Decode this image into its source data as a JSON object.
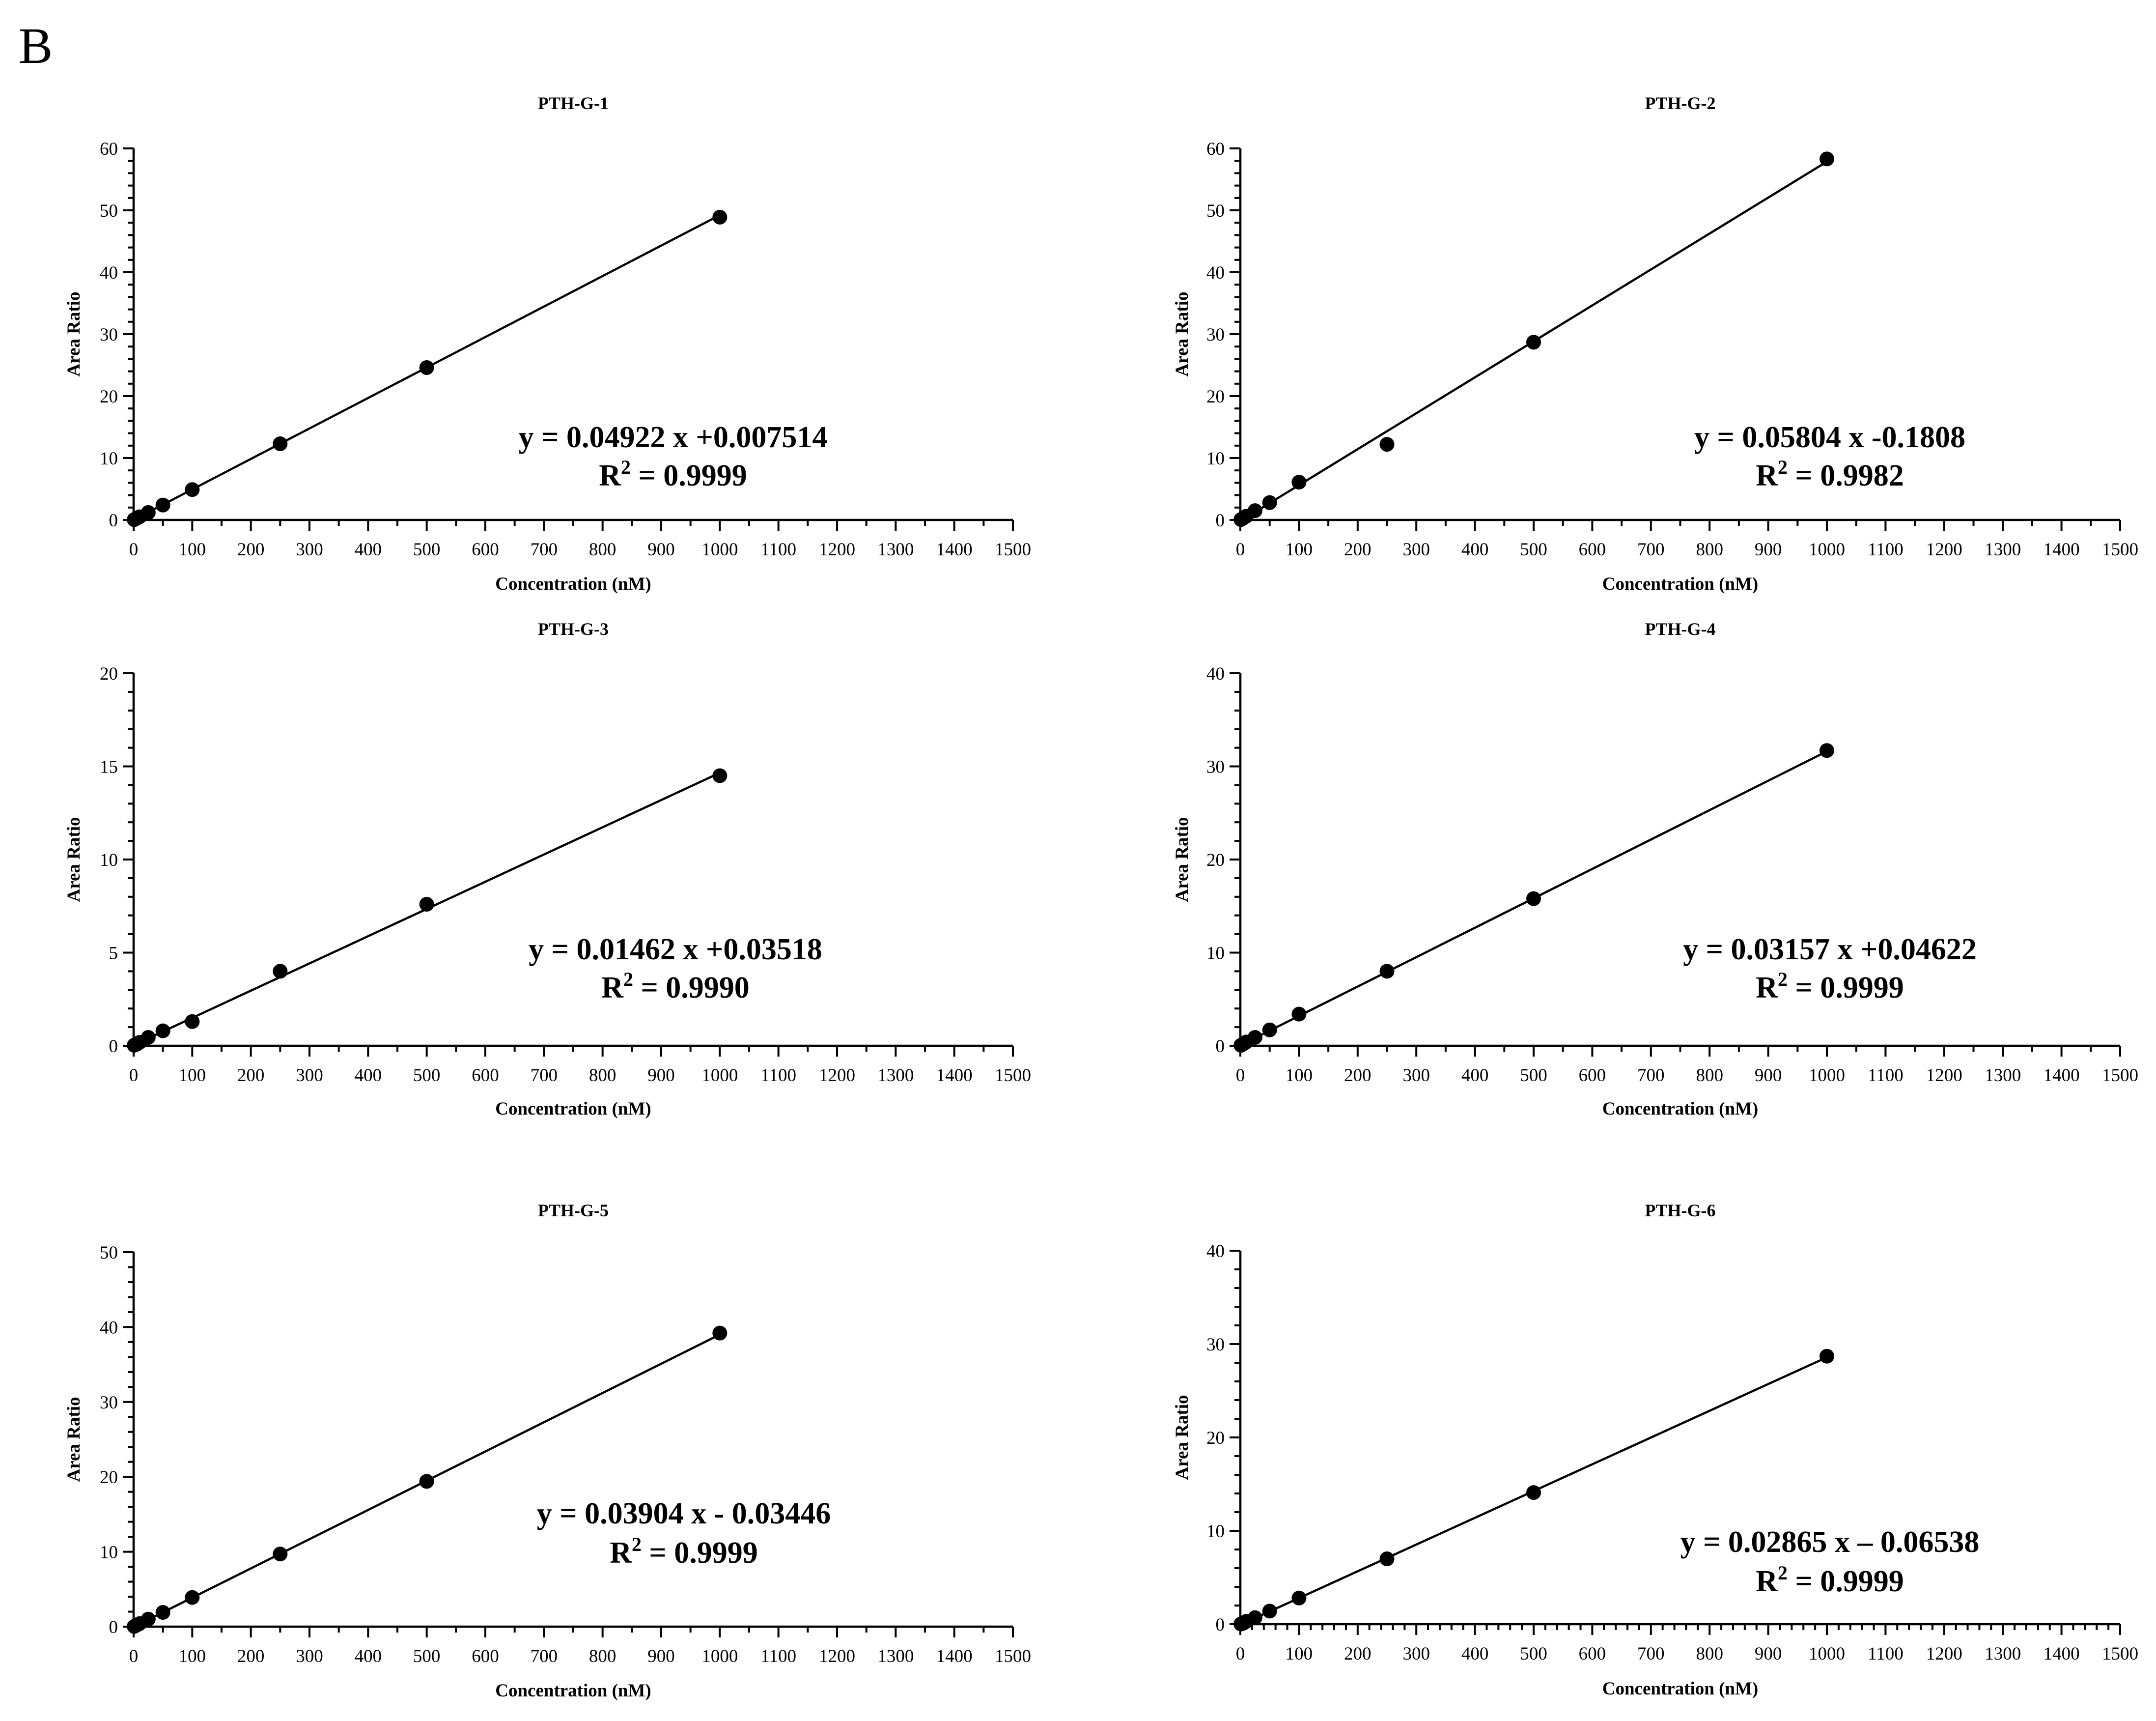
{
  "panel_label": "B",
  "colors": {
    "ink": "#000000",
    "background": "#ffffff"
  },
  "chart_data": [
    {
      "type": "scatter",
      "title": "PTH-G-1",
      "xlabel": "Concentration (nM)",
      "ylabel": "Area Ratio",
      "xlim": [
        0,
        1500
      ],
      "ylim": [
        0,
        60
      ],
      "x_ticks": [
        0,
        100,
        200,
        300,
        400,
        500,
        600,
        700,
        800,
        900,
        1000,
        1100,
        1200,
        1300,
        1400,
        1500
      ],
      "y_ticks": [
        0,
        10,
        20,
        30,
        40,
        50,
        60
      ],
      "y_minor_step": 2,
      "x_minor_step": 50,
      "x": [
        1,
        5,
        10,
        25,
        50,
        100,
        250,
        500,
        1000
      ],
      "y": [
        0.05,
        0.25,
        0.5,
        1.2,
        2.4,
        4.9,
        12.3,
        24.6,
        48.9
      ],
      "fit": {
        "slope": 0.04922,
        "intercept": 0.007514,
        "x_range": [
          0,
          1000
        ]
      },
      "equation": "y = 0.04922 x +0.007514",
      "r2_label": "R",
      "r2_sup": "2",
      "r2_value": " = 0.9999"
    },
    {
      "type": "scatter",
      "title": "PTH-G-2",
      "xlabel": "Concentration (nM)",
      "ylabel": "Area Ratio",
      "xlim": [
        0,
        1500
      ],
      "ylim": [
        0,
        60
      ],
      "x_ticks": [
        0,
        100,
        200,
        300,
        400,
        500,
        600,
        700,
        800,
        900,
        1000,
        1100,
        1200,
        1300,
        1400,
        1500
      ],
      "y_ticks": [
        0,
        10,
        20,
        30,
        40,
        50,
        60
      ],
      "y_minor_step": 2,
      "x_minor_step": 50,
      "x": [
        1,
        5,
        10,
        25,
        50,
        100,
        250,
        500,
        1000
      ],
      "y": [
        0.06,
        0.3,
        0.6,
        1.5,
        2.8,
        6.1,
        12.2,
        28.7,
        58.3
      ],
      "fit": {
        "slope": 0.05804,
        "intercept": -0.1808,
        "x_range": [
          0,
          1000
        ]
      },
      "equation": "y = 0.05804 x -0.1808",
      "r2_label": "R",
      "r2_sup": "2",
      "r2_value": " = 0.9982"
    },
    {
      "type": "scatter",
      "title": "PTH-G-3",
      "xlabel": "Concentration (nM)",
      "ylabel": "Area Ratio",
      "xlim": [
        0,
        1500
      ],
      "ylim": [
        0,
        20
      ],
      "x_ticks": [
        0,
        100,
        200,
        300,
        400,
        500,
        600,
        700,
        800,
        900,
        1000,
        1100,
        1200,
        1300,
        1400,
        1500
      ],
      "y_ticks": [
        0,
        5,
        10,
        15,
        20
      ],
      "y_minor_step": 1,
      "x_minor_step": 50,
      "x": [
        1,
        5,
        10,
        25,
        50,
        100,
        250,
        500,
        1000
      ],
      "y": [
        0.03,
        0.08,
        0.18,
        0.45,
        0.8,
        1.3,
        4.0,
        7.6,
        14.5
      ],
      "fit": {
        "slope": 0.01462,
        "intercept": 0.03518,
        "x_range": [
          0,
          1000
        ]
      },
      "equation": "y = 0.01462 x +0.03518",
      "r2_label": "R",
      "r2_sup": "2",
      "r2_value": " = 0.9990"
    },
    {
      "type": "scatter",
      "title": "PTH-G-4",
      "xlabel": "Concentration (nM)",
      "ylabel": "Area Ratio",
      "xlim": [
        0,
        1500
      ],
      "ylim": [
        0,
        40
      ],
      "x_ticks": [
        0,
        100,
        200,
        300,
        400,
        500,
        600,
        700,
        800,
        900,
        1000,
        1100,
        1200,
        1300,
        1400,
        1500
      ],
      "y_ticks": [
        0,
        10,
        20,
        30,
        40
      ],
      "y_minor_step": 2,
      "x_minor_step": 50,
      "x": [
        1,
        5,
        10,
        25,
        50,
        100,
        250,
        500,
        1000
      ],
      "y": [
        0.05,
        0.2,
        0.4,
        0.9,
        1.7,
        3.4,
        8.0,
        15.8,
        31.7
      ],
      "fit": {
        "slope": 0.03157,
        "intercept": 0.04622,
        "x_range": [
          0,
          1000
        ]
      },
      "equation": "y = 0.03157 x +0.04622",
      "r2_label": "R",
      "r2_sup": "2",
      "r2_value": " = 0.9999"
    },
    {
      "type": "scatter",
      "title": "PTH-G-5",
      "xlabel": "Concentration (nM)",
      "ylabel": "Area Ratio",
      "xlim": [
        0,
        1500
      ],
      "ylim": [
        0,
        50
      ],
      "x_ticks": [
        0,
        100,
        200,
        300,
        400,
        500,
        600,
        700,
        800,
        900,
        1000,
        1100,
        1200,
        1300,
        1400,
        1500
      ],
      "y_ticks": [
        0,
        10,
        20,
        30,
        40,
        50
      ],
      "y_minor_step": 2,
      "x_minor_step": 50,
      "x": [
        1,
        5,
        10,
        25,
        50,
        100,
        250,
        500,
        1000
      ],
      "y": [
        0.03,
        0.2,
        0.4,
        1.0,
        1.9,
        3.9,
        9.7,
        19.4,
        39.2
      ],
      "fit": {
        "slope": 0.03904,
        "intercept": -0.03446,
        "x_range": [
          0,
          1000
        ]
      },
      "equation": "y = 0.03904 x - 0.03446",
      "r2_label": "R",
      "r2_sup": "2",
      "r2_value": " = 0.9999"
    },
    {
      "type": "scatter",
      "title": "PTH-G-6",
      "xlabel": "Concentration (nM)",
      "ylabel": "Area Ratio",
      "xlim": [
        0,
        1500
      ],
      "ylim": [
        0,
        40
      ],
      "x_ticks": [
        0,
        100,
        200,
        300,
        400,
        500,
        600,
        700,
        800,
        900,
        1000,
        1100,
        1200,
        1300,
        1400,
        1500
      ],
      "y_ticks": [
        0,
        10,
        20,
        30,
        40
      ],
      "y_minor_step": 2,
      "x_minor_step": 20,
      "x": [
        1,
        5,
        10,
        25,
        50,
        100,
        250,
        500,
        1000
      ],
      "y": [
        0.02,
        0.1,
        0.3,
        0.7,
        1.4,
        2.8,
        7.0,
        14.1,
        28.7
      ],
      "fit": {
        "slope": 0.02865,
        "intercept": -0.06538,
        "x_range": [
          0,
          1000
        ]
      },
      "equation": "y = 0.02865 x – 0.06538",
      "r2_label": "R",
      "r2_sup": "2",
      "r2_value": " = 0.9999"
    }
  ]
}
